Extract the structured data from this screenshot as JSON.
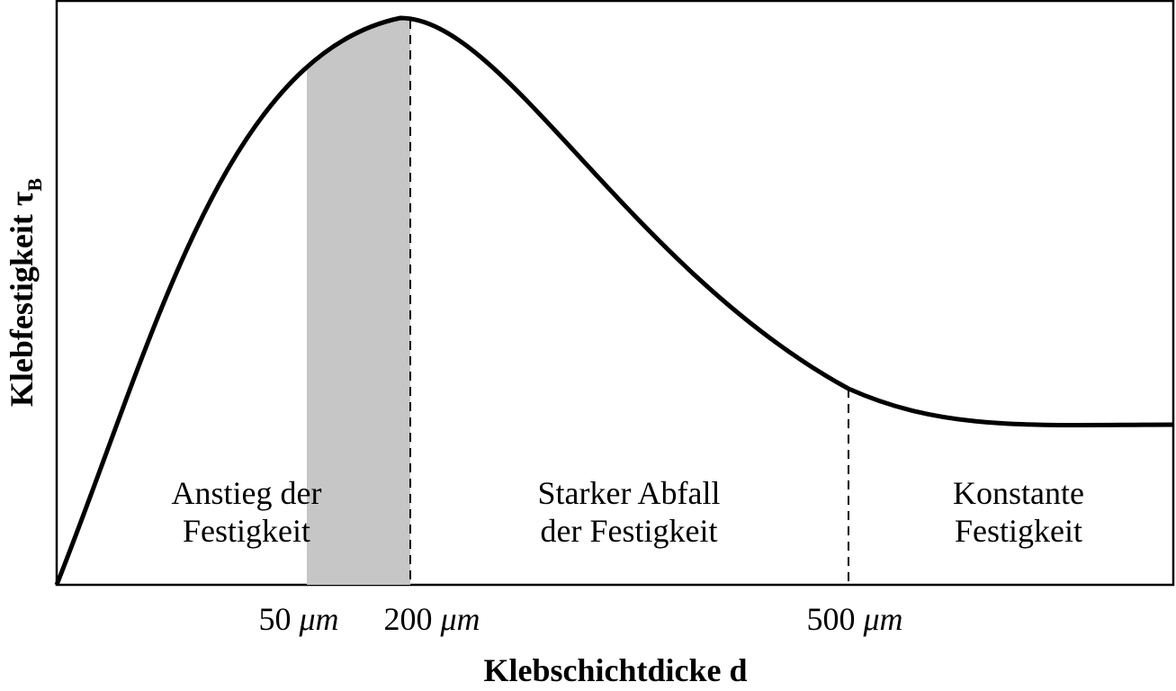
{
  "y_axis": {
    "label": "Klebfestigkeit τ",
    "subscript": "B"
  },
  "x_axis": {
    "label": "Klebschichtdicke d",
    "ticks": [
      {
        "number": "50",
        "unit": "μm"
      },
      {
        "number": "200",
        "unit": "μm"
      },
      {
        "number": "500",
        "unit": "μm"
      }
    ]
  },
  "regions": [
    {
      "lines": [
        "Anstieg der",
        "Festigkeit"
      ]
    },
    {
      "lines": [
        "Starker Abfall",
        "der Festigkeit"
      ]
    },
    {
      "lines": [
        "Konstante",
        "Festigkeit"
      ]
    }
  ]
}
